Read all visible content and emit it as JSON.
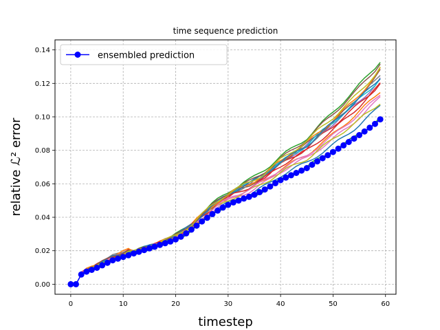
{
  "chart_data": {
    "type": "line",
    "title": "time sequence prediction",
    "xlabel": "timestep",
    "ylabel": "relative ℒ² error",
    "xlim": [
      -3,
      62
    ],
    "ylim": [
      -0.006,
      0.146
    ],
    "xticks": [
      0,
      10,
      20,
      30,
      40,
      50,
      60
    ],
    "xtick_labels": [
      "0",
      "10",
      "20",
      "30",
      "40",
      "50",
      "60"
    ],
    "yticks": [
      0.0,
      0.02,
      0.04,
      0.06,
      0.08,
      0.1,
      0.12,
      0.14
    ],
    "ytick_labels": [
      "0.00",
      "0.02",
      "0.04",
      "0.06",
      "0.08",
      "0.10",
      "0.12",
      "0.14"
    ],
    "grid": true,
    "legend": {
      "position": "top-left",
      "entries": [
        "ensembled prediction"
      ]
    },
    "x": [
      0,
      1,
      2,
      3,
      4,
      5,
      6,
      7,
      8,
      9,
      10,
      11,
      12,
      13,
      14,
      15,
      16,
      17,
      18,
      19,
      20,
      21,
      22,
      23,
      24,
      25,
      26,
      27,
      28,
      29,
      30,
      31,
      32,
      33,
      34,
      35,
      36,
      37,
      38,
      39,
      40,
      41,
      42,
      43,
      44,
      45,
      46,
      47,
      48,
      49,
      50,
      51,
      52,
      53,
      54,
      55,
      56,
      57,
      58,
      59
    ],
    "series": [
      {
        "name": "ensembled prediction",
        "color": "#0000ff",
        "marker": "circle",
        "values": [
          0.0,
          0.0,
          0.0058,
          0.0075,
          0.0086,
          0.0098,
          0.0113,
          0.0128,
          0.0143,
          0.0153,
          0.0163,
          0.0173,
          0.0184,
          0.0194,
          0.0204,
          0.0214,
          0.0224,
          0.0235,
          0.0245,
          0.0255,
          0.0268,
          0.0284,
          0.0304,
          0.0326,
          0.035,
          0.0375,
          0.0397,
          0.0419,
          0.044,
          0.0458,
          0.0474,
          0.0489,
          0.05,
          0.0512,
          0.0522,
          0.0535,
          0.055,
          0.0566,
          0.0584,
          0.0604,
          0.0622,
          0.0637,
          0.0651,
          0.0665,
          0.0679,
          0.0694,
          0.0714,
          0.0734,
          0.0753,
          0.0771,
          0.079,
          0.081,
          0.083,
          0.085,
          0.087,
          0.0891,
          0.0913,
          0.0935,
          0.0958,
          0.0985
        ]
      }
    ],
    "members": [
      {
        "color": "#1f77b4",
        "end": 0.106
      },
      {
        "color": "#ff7f0e",
        "end": 0.115
      },
      {
        "color": "#2ca02c",
        "end": 0.134
      },
      {
        "color": "#d62728",
        "end": 0.121
      },
      {
        "color": "#9467bd",
        "end": 0.123
      },
      {
        "color": "#8c564b",
        "end": 0.127
      },
      {
        "color": "#e377c2",
        "end": 0.111
      },
      {
        "color": "#7f7f7f",
        "end": 0.125
      },
      {
        "color": "#bcbd22",
        "end": 0.109
      },
      {
        "color": "#17becf",
        "end": 0.124
      },
      {
        "color": "#2ca02c",
        "end": 0.1
      },
      {
        "color": "#ff7f0e",
        "end": 0.128
      },
      {
        "color": "#d62728",
        "end": 0.119
      },
      {
        "color": "#e377c2",
        "end": 0.113
      },
      {
        "color": "#1f77b4",
        "end": 0.124
      },
      {
        "color": "#8c564b",
        "end": 0.133
      },
      {
        "color": "#bcbd22",
        "end": 0.13
      }
    ]
  }
}
